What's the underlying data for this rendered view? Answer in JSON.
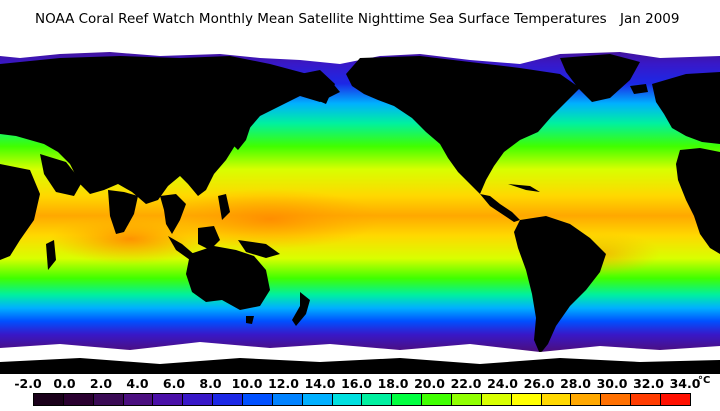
{
  "title": "NOAA Coral Reef Watch Monthly Mean Satellite Nighttime Sea Surface Temperatures",
  "date": "Jan 2009",
  "legend": {
    "labels": [
      "-2.0",
      "0.0",
      "2.0",
      "4.0",
      "6.0",
      "8.0",
      "10.0",
      "12.0",
      "14.0",
      "16.0",
      "18.0",
      "20.0",
      "22.0",
      "24.0",
      "26.0",
      "28.0",
      "30.0",
      "32.0",
      "34.0"
    ],
    "unit": "°C",
    "colors": [
      "#1a001a",
      "#2a0030",
      "#3a0a55",
      "#4b0f80",
      "#4a10a8",
      "#3818c8",
      "#1c28e6",
      "#0050ff",
      "#0082ff",
      "#00b0ff",
      "#00e0e0",
      "#00f0a0",
      "#00ff40",
      "#40ff00",
      "#90ff00",
      "#d8ff00",
      "#ffff00",
      "#ffd800",
      "#ffa800",
      "#ff7000",
      "#ff3c00",
      "#ff1000"
    ]
  },
  "map": {
    "name": "global-sst-map",
    "land_color": "#000000",
    "ice_color": "#ffffff"
  }
}
